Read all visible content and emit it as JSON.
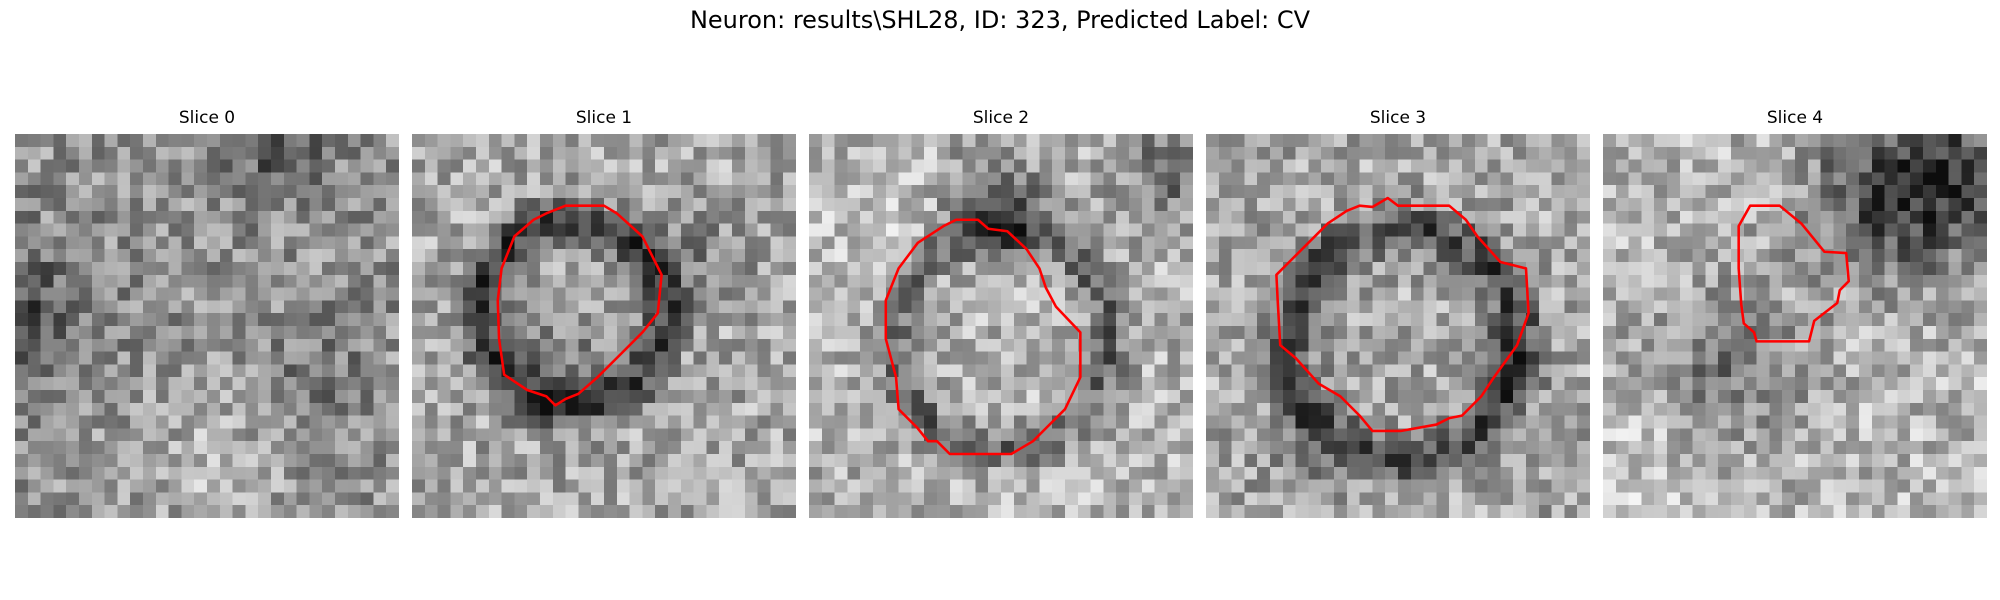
{
  "figure": {
    "title": "Neuron: results\\SHL28, ID: 323, Predicted Label: CV"
  },
  "panels": [
    {
      "title": "Slice 0",
      "has_contour": false
    },
    {
      "title": "Slice 1",
      "has_contour": true
    },
    {
      "title": "Slice 2",
      "has_contour": true
    },
    {
      "title": "Slice 3",
      "has_contour": true
    },
    {
      "title": "Slice 4",
      "has_contour": true
    }
  ],
  "style": {
    "contour_color": "#ff0000",
    "colormap": "grayscale"
  }
}
